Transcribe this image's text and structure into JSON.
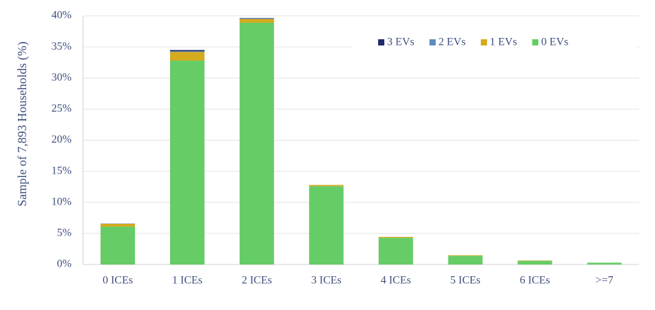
{
  "chart_data": {
    "type": "stacked_bar",
    "y_label": "Sample of 7,893 Households (%)",
    "categories": [
      "0 ICEs",
      "1 ICEs",
      "2 ICEs",
      "3 ICEs",
      "4 ICEs",
      "5 ICEs",
      "6 ICEs",
      ">=7"
    ],
    "series": [
      {
        "name": "0 EVs",
        "color": "#66cc66",
        "values": [
          6.1,
          32.8,
          38.9,
          12.6,
          4.3,
          1.4,
          0.6,
          0.3
        ]
      },
      {
        "name": "1 EVs",
        "color": "#d4aa1e",
        "values": [
          0.45,
          1.4,
          0.6,
          0.2,
          0.15,
          0.1,
          0.05,
          0.0
        ]
      },
      {
        "name": "2 EVs",
        "color": "#5b8bbf",
        "values": [
          0.05,
          0.1,
          0.1,
          0.0,
          0.0,
          0.0,
          0.0,
          0.0
        ]
      },
      {
        "name": "3 EVs",
        "color": "#1f2a6e",
        "values": [
          0.0,
          0.2,
          0.05,
          0.0,
          0.0,
          0.0,
          0.0,
          0.0
        ]
      }
    ],
    "ylim": [
      0,
      40
    ],
    "yticks": [
      {
        "value": 0,
        "label": "0%"
      },
      {
        "value": 5,
        "label": "5%"
      },
      {
        "value": 10,
        "label": "10%"
      },
      {
        "value": 15,
        "label": "15%"
      },
      {
        "value": 20,
        "label": "20%"
      },
      {
        "value": 25,
        "label": "25%"
      },
      {
        "value": 30,
        "label": "30%"
      },
      {
        "value": 35,
        "label": "35%"
      },
      {
        "value": 40,
        "label": "40%"
      }
    ],
    "grid": true,
    "legend": "top-right"
  }
}
